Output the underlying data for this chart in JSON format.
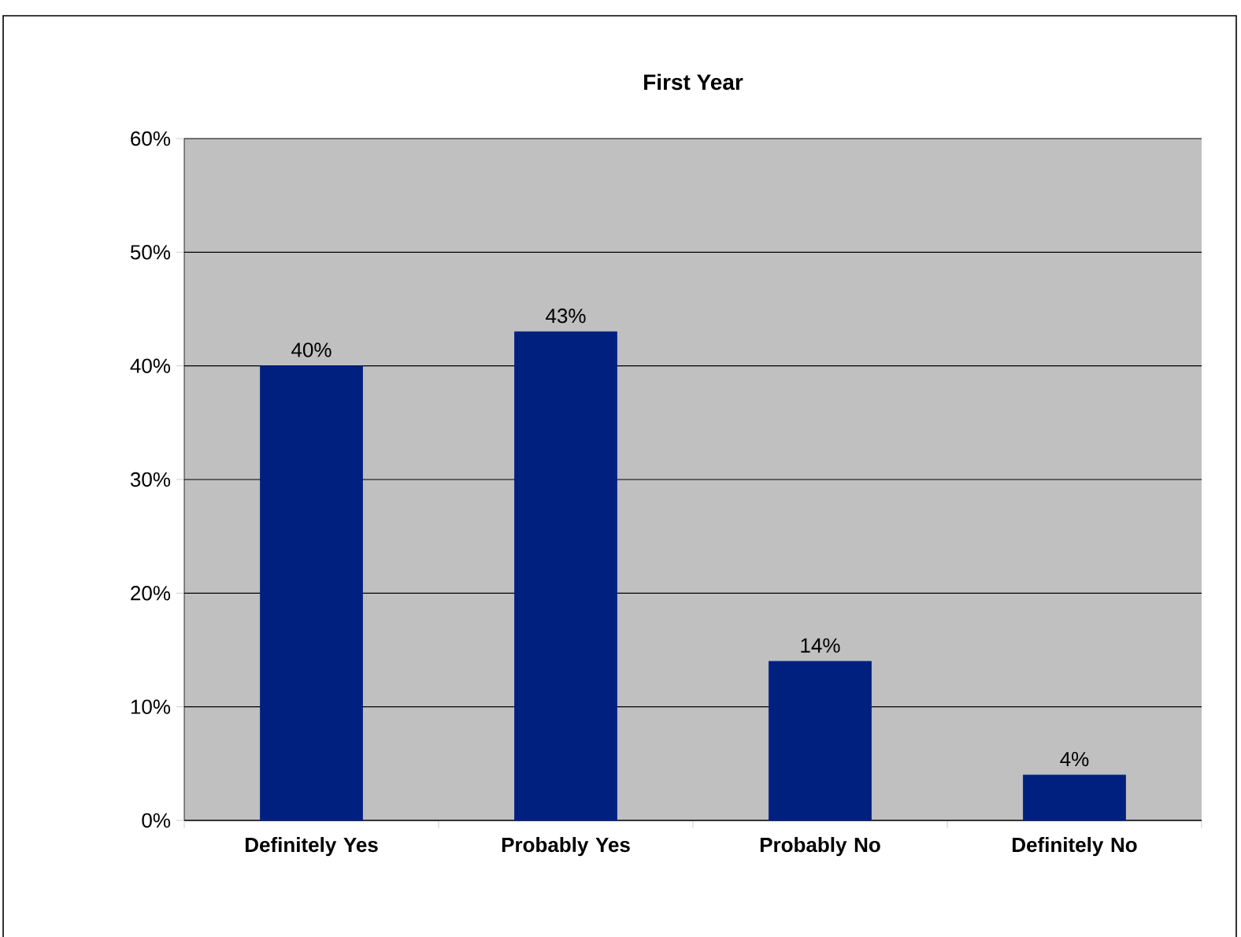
{
  "chart_data": {
    "type": "bar",
    "title": "First Year",
    "categories": [
      "Definitely Yes",
      "Probably Yes",
      "Probably No",
      "Definitely No"
    ],
    "values": [
      40,
      43,
      14,
      4
    ],
    "value_labels": [
      "40%",
      "43%",
      "14%",
      "4%"
    ],
    "color": "#002080",
    "ylim": [
      0,
      60
    ],
    "yticks": [
      {
        "value": 0,
        "label": "0%"
      },
      {
        "value": 10,
        "label": "10%"
      },
      {
        "value": 20,
        "label": "20%"
      },
      {
        "value": 30,
        "label": "30%"
      },
      {
        "value": 40,
        "label": "40%"
      },
      {
        "value": 50,
        "label": "50%"
      },
      {
        "value": 60,
        "label": "60%"
      }
    ],
    "grid": "y"
  }
}
